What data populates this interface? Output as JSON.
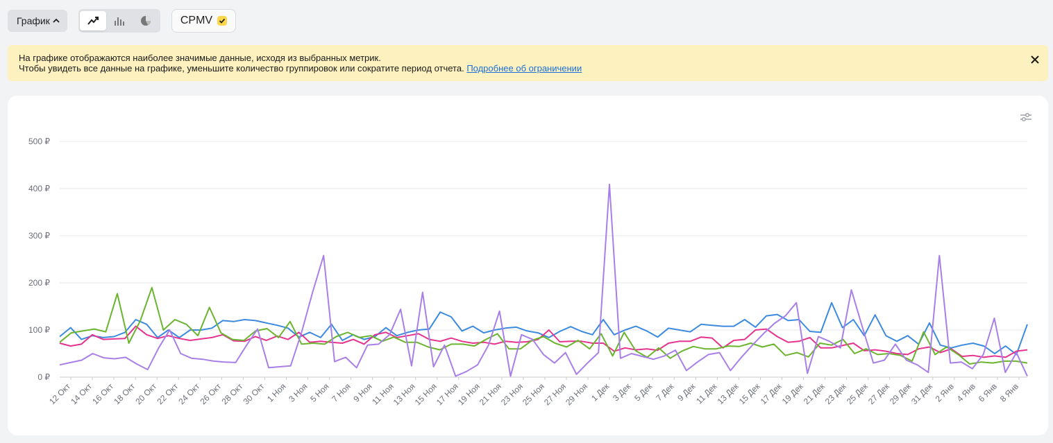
{
  "toolbar": {
    "graph_label": "График",
    "chart_types": [
      "line-chart-icon",
      "bar-chart-icon",
      "pie-chart-icon"
    ],
    "active_chart_type": "line",
    "metric_label": "CPMV"
  },
  "notice": {
    "line1": "На графике отображаются наиболее значимые данные, исходя из выбранных метрик.",
    "line2": "Чтобы увидеть все данные на графике, уменьшите количество группировок или сократите период отчета.",
    "link": "Подробнее об ограничении"
  },
  "chart_data": {
    "type": "line",
    "ylim": [
      0,
      500
    ],
    "grid": true,
    "y_ticks": [
      0,
      100,
      200,
      300,
      400,
      500
    ],
    "y_tick_labels": [
      "0 ₽",
      "100 ₽",
      "200 ₽",
      "300 ₽",
      "400 ₽",
      "500 ₽"
    ],
    "x_tick_labels": [
      "12 Окт",
      "14 Окт",
      "16 Окт",
      "18 Окт",
      "20 Окт",
      "22 Окт",
      "24 Окт",
      "26 Окт",
      "28 Окт",
      "30 Окт",
      "1 Ноя",
      "3 Ноя",
      "5 Ноя",
      "7 Ноя",
      "9 Ноя",
      "11 Ноя",
      "13 Ноя",
      "15 Ноя",
      "17 Ноя",
      "19 Ноя",
      "21 Ноя",
      "23 Ноя",
      "25 Ноя",
      "27 Ноя",
      "29 Ноя",
      "1 Дек",
      "3 Дек",
      "5 Дек",
      "7 Дек",
      "9 Дек",
      "11 Дек",
      "13 Дек",
      "15 Дек",
      "17 Дек",
      "19 Дек",
      "21 Дек",
      "23 Дек",
      "25 Дек",
      "27 Дек",
      "29 Дек",
      "31 Дек",
      "2 Янв",
      "4 Янв",
      "6 Янв",
      "8 Янв"
    ],
    "series": [
      {
        "color": "#3c8ae0",
        "values": [
          86,
          105,
          80,
          88,
          84,
          86,
          95,
          122,
          112,
          84,
          100,
          84,
          100,
          100,
          104,
          120,
          118,
          122,
          120,
          115,
          110,
          104,
          85,
          95,
          84,
          112,
          78,
          90,
          80,
          86,
          105,
          88,
          95,
          100,
          102,
          138,
          128,
          98,
          108,
          94,
          100,
          104,
          106,
          98,
          94,
          84,
          97,
          107,
          97,
          90,
          122,
          90,
          100,
          108,
          98,
          85,
          104,
          100,
          96,
          112,
          110,
          108,
          108,
          122,
          106,
          130,
          133,
          120,
          122,
          97,
          95,
          158,
          105,
          122,
          88,
          132,
          88,
          76,
          88,
          70,
          115,
          68,
          62,
          68,
          72,
          66,
          50,
          66,
          48,
          112
        ]
      },
      {
        "color": "#e6338e",
        "values": [
          72,
          66,
          70,
          90,
          80,
          81,
          82,
          108,
          90,
          82,
          88,
          82,
          78,
          81,
          84,
          90,
          77,
          76,
          86,
          78,
          87,
          80,
          95,
          74,
          76,
          74,
          72,
          80,
          70,
          90,
          95,
          84,
          88,
          92,
          80,
          76,
          83,
          76,
          72,
          74,
          70,
          76,
          74,
          75,
          80,
          100,
          75,
          76,
          76,
          72,
          72,
          55,
          62,
          58,
          60,
          57,
          72,
          76,
          76,
          85,
          83,
          62,
          78,
          80,
          100,
          102,
          86,
          74,
          76,
          84,
          62,
          62,
          67,
          72,
          56,
          58,
          55,
          50,
          48,
          60,
          64,
          52,
          60,
          44,
          46,
          42,
          45,
          42,
          55,
          58
        ]
      },
      {
        "color": "#6ab42e",
        "values": [
          74,
          94,
          98,
          102,
          96,
          177,
          72,
          120,
          190,
          100,
          122,
          112,
          88,
          148,
          94,
          80,
          78,
          98,
          103,
          84,
          118,
          70,
          72,
          70,
          86,
          95,
          84,
          88,
          76,
          85,
          74,
          74,
          64,
          58,
          70,
          70,
          66,
          80,
          92,
          60,
          60,
          78,
          86,
          72,
          64,
          78,
          60,
          92,
          45,
          95,
          56,
          42,
          62,
          40,
          55,
          65,
          60,
          60,
          66,
          65,
          72,
          64,
          70,
          46,
          52,
          43,
          72,
          68,
          80,
          50,
          60,
          48,
          50,
          46,
          34,
          96,
          48,
          64,
          48,
          28,
          32,
          30,
          34,
          34,
          30
        ]
      },
      {
        "color": "#a87fe8",
        "values": [
          26,
          31,
          36,
          50,
          41,
          39,
          42,
          28,
          16,
          62,
          100,
          50,
          40,
          38,
          34,
          32,
          31,
          68,
          102,
          20,
          22,
          24,
          95,
          180,
          258,
          33,
          42,
          20,
          68,
          70,
          90,
          144,
          24,
          180,
          22,
          68,
          2,
          12,
          26,
          68,
          140,
          2,
          90,
          80,
          48,
          30,
          52,
          6,
          30,
          52,
          409,
          40,
          50,
          44,
          38,
          45,
          57,
          14,
          32,
          48,
          52,
          14,
          42,
          68,
          92,
          114,
          130,
          158,
          8,
          86,
          76,
          62,
          185,
          106,
          30,
          36,
          70,
          36,
          26,
          10,
          258,
          30,
          32,
          18,
          48,
          125,
          10,
          52,
          2
        ]
      }
    ]
  }
}
